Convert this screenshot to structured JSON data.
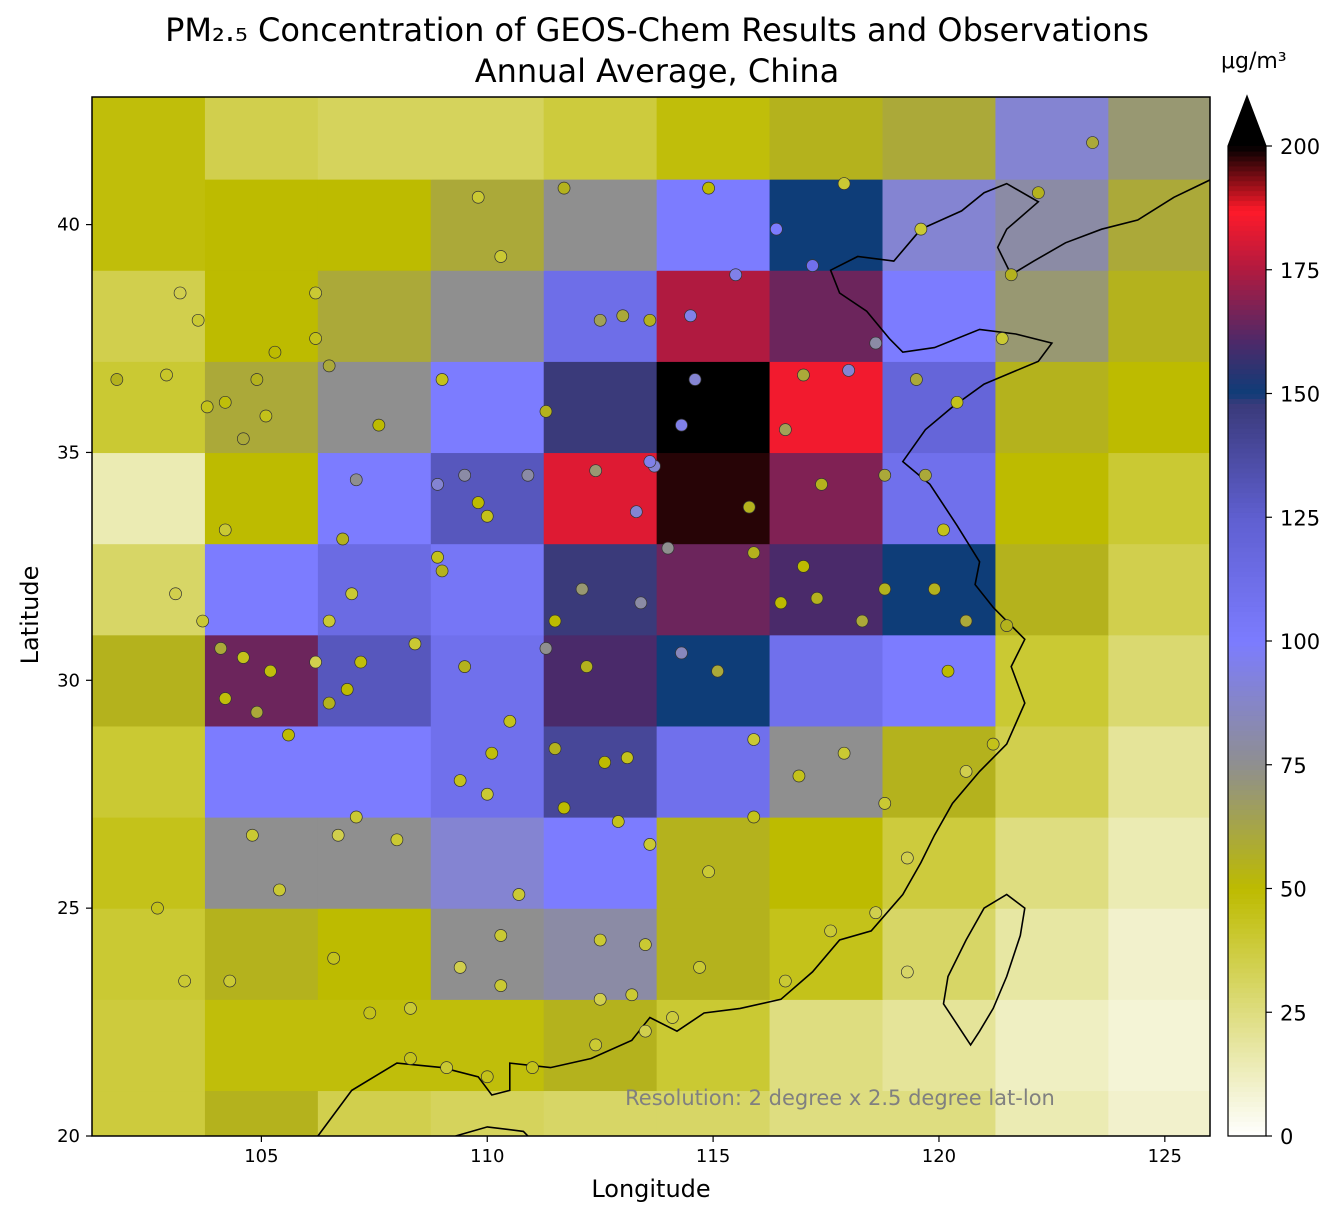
{
  "title": {
    "line1": "PM₂.₅ Concentration of GEOS-Chem Results and Observations",
    "line2": "Annual Average, China"
  },
  "axes": {
    "xlabel": "Longitude",
    "ylabel": "Latitude",
    "xticks": [
      105,
      110,
      115,
      120,
      125
    ],
    "yticks": [
      20,
      25,
      30,
      35,
      40
    ],
    "xlim": [
      101.25,
      126.0
    ],
    "ylim": [
      20.0,
      42.8
    ]
  },
  "annotation": "Resolution: 2 degree x 2.5 degree lat-lon",
  "colorbar": {
    "unit": "μg/m³",
    "ticks": [
      0,
      25,
      50,
      75,
      100,
      125,
      150,
      175,
      200
    ],
    "min": 0,
    "max": 200,
    "extend": "max",
    "stops": [
      {
        "v": 0,
        "c": "#ffffff"
      },
      {
        "v": 50,
        "c": "#bdbb00"
      },
      {
        "v": 75,
        "c": "#8f8f8f"
      },
      {
        "v": 100,
        "c": "#7c7cff"
      },
      {
        "v": 125,
        "c": "#5f5fd0"
      },
      {
        "v": 148,
        "c": "#3a3a7a"
      },
      {
        "v": 150,
        "c": "#0e3d78"
      },
      {
        "v": 160,
        "c": "#4a2a6a"
      },
      {
        "v": 175,
        "c": "#b01a40"
      },
      {
        "v": 187,
        "c": "#ff1a2a"
      },
      {
        "v": 200,
        "c": "#000000"
      }
    ]
  },
  "chart_data": {
    "type": "heatmap",
    "x_edges": [
      101.25,
      103.75,
      106.25,
      108.75,
      111.25,
      113.75,
      116.25,
      118.75,
      121.25,
      123.75,
      126.25
    ],
    "y_edges": [
      20,
      21,
      23,
      25,
      27,
      29,
      31,
      33,
      35,
      37,
      39,
      41,
      42.8
    ],
    "grid_pm25": [
      [
        38,
        55,
        35,
        32,
        30,
        30,
        25,
        25,
        15,
        10
      ],
      [
        38,
        48,
        48,
        48,
        55,
        40,
        25,
        20,
        12,
        8
      ],
      [
        40,
        55,
        50,
        75,
        80,
        55,
        45,
        30,
        18,
        10
      ],
      [
        45,
        75,
        75,
        90,
        100,
        55,
        50,
        38,
        25,
        15
      ],
      [
        40,
        100,
        100,
        110,
        140,
        110,
        75,
        55,
        35,
        20
      ],
      [
        55,
        165,
        130,
        110,
        160,
        150,
        110,
        100,
        40,
        28
      ],
      [
        30,
        100,
        115,
        105,
        148,
        165,
        160,
        150,
        55,
        35
      ],
      [
        15,
        50,
        100,
        130,
        182,
        198,
        168,
        110,
        50,
        40
      ],
      [
        40,
        60,
        75,
        100,
        148,
        200,
        185,
        120,
        55,
        50
      ],
      [
        35,
        50,
        60,
        75,
        112,
        175,
        165,
        100,
        70,
        55
      ],
      [
        48,
        50,
        50,
        60,
        75,
        100,
        150,
        90,
        80,
        60
      ],
      [
        48,
        35,
        32,
        32,
        38,
        48,
        55,
        60,
        90,
        70
      ]
    ],
    "observations": [
      [
        103.2,
        38.5,
        35
      ],
      [
        103.6,
        37.9,
        40
      ],
      [
        102.9,
        36.7,
        42
      ],
      [
        104.2,
        36.1,
        48
      ],
      [
        105.1,
        35.8,
        45
      ],
      [
        104.6,
        35.3,
        60
      ],
      [
        104.9,
        36.6,
        55
      ],
      [
        106.5,
        36.9,
        60
      ],
      [
        106.2,
        37.5,
        45
      ],
      [
        105.3,
        37.2,
        50
      ],
      [
        104.2,
        33.3,
        40
      ],
      [
        103.1,
        31.9,
        35
      ],
      [
        103.7,
        31.3,
        40
      ],
      [
        104.1,
        30.7,
        60
      ],
      [
        104.6,
        30.5,
        45
      ],
      [
        105.2,
        30.2,
        48
      ],
      [
        104.2,
        29.6,
        48
      ],
      [
        104.9,
        29.3,
        60
      ],
      [
        106.5,
        29.5,
        55
      ],
      [
        106.9,
        29.8,
        50
      ],
      [
        106.2,
        30.4,
        35
      ],
      [
        106.5,
        31.3,
        40
      ],
      [
        107.2,
        30.4,
        48
      ],
      [
        108.4,
        30.8,
        40
      ],
      [
        105.6,
        28.8,
        50
      ],
      [
        106.7,
        26.6,
        35
      ],
      [
        104.8,
        26.6,
        40
      ],
      [
        105.4,
        25.4,
        40
      ],
      [
        107.1,
        27.0,
        40
      ],
      [
        108.0,
        26.5,
        40
      ],
      [
        109.4,
        27.8,
        45
      ],
      [
        110.1,
        28.4,
        48
      ],
      [
        110.7,
        25.3,
        40
      ],
      [
        110.3,
        24.4,
        40
      ],
      [
        110.3,
        23.3,
        40
      ],
      [
        109.4,
        23.7,
        35
      ],
      [
        108.3,
        22.8,
        40
      ],
      [
        109.1,
        21.5,
        40
      ],
      [
        108.3,
        21.7,
        45
      ],
      [
        110.0,
        21.3,
        45
      ],
      [
        111.0,
        21.5,
        45
      ],
      [
        112.5,
        23.0,
        35
      ],
      [
        113.2,
        23.1,
        40
      ],
      [
        113.5,
        22.3,
        35
      ],
      [
        114.1,
        22.6,
        38
      ],
      [
        114.7,
        23.7,
        40
      ],
      [
        113.5,
        24.2,
        40
      ],
      [
        112.5,
        24.3,
        40
      ],
      [
        113.6,
        26.4,
        40
      ],
      [
        112.9,
        26.9,
        45
      ],
      [
        112.6,
        28.2,
        50
      ],
      [
        113.1,
        28.3,
        45
      ],
      [
        111.7,
        27.2,
        50
      ],
      [
        111.5,
        28.5,
        55
      ],
      [
        110.0,
        27.5,
        40
      ],
      [
        114.9,
        25.8,
        40
      ],
      [
        115.9,
        27.0,
        45
      ],
      [
        115.9,
        28.7,
        40
      ],
      [
        116.9,
        27.9,
        45
      ],
      [
        117.9,
        28.4,
        40
      ],
      [
        118.8,
        27.3,
        40
      ],
      [
        119.3,
        26.1,
        35
      ],
      [
        117.6,
        24.5,
        40
      ],
      [
        116.6,
        23.4,
        40
      ],
      [
        118.6,
        24.9,
        35
      ],
      [
        119.3,
        23.6,
        30
      ],
      [
        120.6,
        28.0,
        35
      ],
      [
        121.2,
        28.6,
        45
      ],
      [
        120.2,
        30.2,
        50
      ],
      [
        121.5,
        31.2,
        55
      ],
      [
        120.6,
        31.3,
        60
      ],
      [
        119.9,
        32.0,
        55
      ],
      [
        118.8,
        32.0,
        55
      ],
      [
        118.3,
        31.3,
        60
      ],
      [
        117.3,
        31.8,
        55
      ],
      [
        116.5,
        31.7,
        50
      ],
      [
        115.9,
        32.8,
        55
      ],
      [
        117.0,
        32.5,
        50
      ],
      [
        117.4,
        34.3,
        55
      ],
      [
        118.8,
        34.5,
        60
      ],
      [
        119.7,
        34.5,
        60
      ],
      [
        120.1,
        33.3,
        45
      ],
      [
        116.6,
        35.5,
        65
      ],
      [
        117.0,
        36.7,
        60
      ],
      [
        118.0,
        36.8,
        90
      ],
      [
        118.6,
        37.4,
        80
      ],
      [
        119.5,
        36.6,
        60
      ],
      [
        120.4,
        36.1,
        45
      ],
      [
        121.4,
        37.5,
        40
      ],
      [
        117.2,
        39.1,
        110
      ],
      [
        116.4,
        39.9,
        100
      ],
      [
        115.5,
        38.9,
        95
      ],
      [
        114.5,
        38.0,
        95
      ],
      [
        114.6,
        36.6,
        90
      ],
      [
        114.3,
        35.6,
        95
      ],
      [
        113.7,
        34.7,
        90
      ],
      [
        112.4,
        34.6,
        70
      ],
      [
        111.3,
        35.9,
        55
      ],
      [
        112.5,
        37.9,
        65
      ],
      [
        113.6,
        37.9,
        55
      ],
      [
        113.0,
        38.0,
        60
      ],
      [
        111.7,
        40.8,
        55
      ],
      [
        109.8,
        40.6,
        40
      ],
      [
        110.3,
        39.3,
        40
      ],
      [
        114.9,
        40.8,
        50
      ],
      [
        117.9,
        40.9,
        40
      ],
      [
        119.6,
        39.9,
        40
      ],
      [
        121.6,
        38.9,
        55
      ],
      [
        122.2,
        40.7,
        55
      ],
      [
        123.4,
        41.8,
        60
      ],
      [
        108.9,
        34.3,
        90
      ],
      [
        109.5,
        34.5,
        80
      ],
      [
        107.1,
        34.4,
        75
      ],
      [
        110.9,
        34.5,
        80
      ],
      [
        113.6,
        34.8,
        95
      ],
      [
        114.3,
        30.6,
        85
      ],
      [
        115.1,
        30.2,
        60
      ],
      [
        112.2,
        30.3,
        55
      ],
      [
        111.3,
        30.7,
        75
      ],
      [
        110.5,
        29.1,
        45
      ],
      [
        109.5,
        30.3,
        55
      ],
      [
        106.8,
        33.1,
        55
      ],
      [
        107.0,
        31.9,
        40
      ],
      [
        108.9,
        32.7,
        45
      ],
      [
        109.0,
        32.4,
        55
      ],
      [
        109.8,
        33.9,
        50
      ],
      [
        111.5,
        31.3,
        50
      ],
      [
        112.1,
        32.0,
        70
      ],
      [
        113.4,
        31.7,
        80
      ],
      [
        114.0,
        32.9,
        75
      ],
      [
        115.8,
        33.8,
        55
      ],
      [
        113.3,
        33.7,
        90
      ],
      [
        103.8,
        36.0,
        45
      ],
      [
        101.8,
        36.6,
        55
      ],
      [
        106.2,
        38.5,
        40
      ],
      [
        109.0,
        36.6,
        45
      ],
      [
        107.6,
        35.6,
        50
      ],
      [
        110.0,
        33.6,
        45
      ],
      [
        102.7,
        25.0,
        45
      ],
      [
        103.3,
        23.4,
        40
      ],
      [
        104.3,
        23.4,
        40
      ],
      [
        106.6,
        23.9,
        45
      ],
      [
        107.4,
        22.7,
        45
      ],
      [
        112.4,
        22.0,
        40
      ]
    ],
    "coastline_lonlat": [
      [
        106.25,
        20.0
      ],
      [
        107.0,
        21.0
      ],
      [
        108.0,
        21.6
      ],
      [
        109.0,
        21.5
      ],
      [
        109.8,
        21.3
      ],
      [
        110.1,
        20.9
      ],
      [
        110.5,
        21.0
      ],
      [
        110.5,
        21.6
      ],
      [
        111.4,
        21.5
      ],
      [
        112.3,
        21.7
      ],
      [
        113.2,
        22.1
      ],
      [
        113.6,
        22.6
      ],
      [
        114.2,
        22.3
      ],
      [
        114.8,
        22.7
      ],
      [
        115.6,
        22.8
      ],
      [
        116.5,
        23.0
      ],
      [
        117.2,
        23.6
      ],
      [
        117.8,
        24.3
      ],
      [
        118.5,
        24.5
      ],
      [
        119.2,
        25.3
      ],
      [
        119.6,
        26.0
      ],
      [
        119.9,
        26.6
      ],
      [
        120.3,
        27.3
      ],
      [
        120.9,
        28.0
      ],
      [
        121.5,
        28.6
      ],
      [
        121.9,
        29.5
      ],
      [
        121.6,
        30.3
      ],
      [
        121.9,
        30.9
      ],
      [
        121.2,
        31.6
      ],
      [
        120.8,
        32.1
      ],
      [
        120.9,
        32.6
      ],
      [
        120.4,
        33.4
      ],
      [
        119.8,
        34.3
      ],
      [
        119.2,
        34.8
      ],
      [
        119.7,
        35.5
      ],
      [
        120.3,
        36.0
      ],
      [
        121.0,
        36.5
      ],
      [
        122.2,
        37.0
      ],
      [
        122.5,
        37.4
      ],
      [
        121.7,
        37.6
      ],
      [
        120.9,
        37.7
      ],
      [
        119.9,
        37.3
      ],
      [
        119.2,
        37.2
      ],
      [
        118.9,
        37.5
      ],
      [
        118.4,
        38.1
      ],
      [
        117.8,
        38.5
      ],
      [
        117.6,
        39.0
      ],
      [
        118.2,
        39.3
      ],
      [
        119.0,
        39.2
      ],
      [
        119.6,
        39.9
      ],
      [
        120.5,
        40.3
      ],
      [
        121.0,
        40.7
      ],
      [
        121.5,
        40.9
      ],
      [
        122.2,
        40.5
      ],
      [
        121.5,
        39.9
      ],
      [
        121.3,
        39.5
      ],
      [
        121.6,
        38.9
      ],
      [
        122.1,
        39.2
      ],
      [
        122.8,
        39.6
      ],
      [
        123.6,
        39.9
      ],
      [
        124.4,
        40.1
      ],
      [
        125.2,
        40.6
      ],
      [
        126.25,
        41.1
      ]
    ],
    "taiwan_lonlat": [
      [
        121.9,
        25.0
      ],
      [
        121.5,
        25.3
      ],
      [
        121.0,
        25.0
      ],
      [
        120.6,
        24.3
      ],
      [
        120.2,
        23.5
      ],
      [
        120.1,
        22.9
      ],
      [
        120.7,
        22.0
      ],
      [
        120.9,
        22.3
      ],
      [
        121.2,
        22.8
      ],
      [
        121.5,
        23.5
      ],
      [
        121.8,
        24.4
      ],
      [
        121.9,
        25.0
      ]
    ],
    "hainan_lonlat": [
      [
        109.3,
        20.0
      ],
      [
        110.0,
        20.2
      ],
      [
        110.8,
        20.1
      ],
      [
        110.9,
        20.0
      ]
    ]
  }
}
